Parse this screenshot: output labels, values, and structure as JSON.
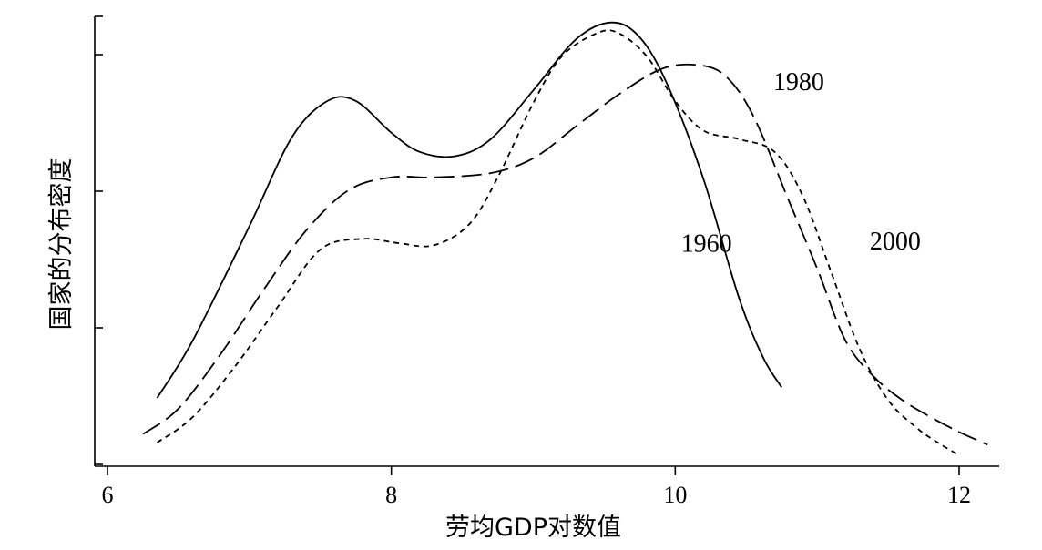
{
  "chart_data": {
    "type": "line",
    "title": "",
    "xlabel": "劳均GDP对数值",
    "ylabel": "国家的分布密度",
    "xlim": [
      5.95,
      12.25
    ],
    "ylim": [
      0,
      1
    ],
    "x_ticks": [
      6,
      8,
      10,
      12
    ],
    "x_tick_labels": [
      "6",
      "8",
      "10",
      "12"
    ],
    "y_tick_count": 5,
    "grid": false,
    "series": [
      {
        "name": "1960",
        "style": "solid",
        "x": [
          6.35,
          6.6,
          7.0,
          7.3,
          7.55,
          7.75,
          8.0,
          8.2,
          8.45,
          8.7,
          9.0,
          9.3,
          9.55,
          9.75,
          9.95,
          10.2,
          10.45,
          10.62,
          10.75
        ],
        "y": [
          0.135,
          0.27,
          0.54,
          0.75,
          0.835,
          0.835,
          0.76,
          0.715,
          0.705,
          0.745,
          0.86,
          0.98,
          1.02,
          0.985,
          0.87,
          0.65,
          0.37,
          0.23,
          0.16
        ]
      },
      {
        "name": "1980",
        "style": "dashed",
        "x": [
          6.25,
          6.5,
          6.8,
          7.1,
          7.4,
          7.7,
          8.0,
          8.3,
          8.7,
          9.0,
          9.3,
          9.6,
          9.9,
          10.15,
          10.35,
          10.55,
          10.8,
          11.0,
          11.2,
          11.4,
          11.6,
          11.8,
          12.0,
          12.2
        ],
        "y": [
          0.05,
          0.11,
          0.24,
          0.39,
          0.53,
          0.625,
          0.655,
          0.655,
          0.665,
          0.7,
          0.775,
          0.85,
          0.91,
          0.92,
          0.895,
          0.8,
          0.6,
          0.44,
          0.27,
          0.185,
          0.13,
          0.09,
          0.055,
          0.025
        ]
      },
      {
        "name": "2000",
        "style": "dotted",
        "x": [
          6.35,
          6.6,
          6.9,
          7.2,
          7.5,
          7.8,
          8.05,
          8.3,
          8.55,
          8.75,
          9.0,
          9.2,
          9.45,
          9.6,
          9.8,
          10.0,
          10.2,
          10.45,
          10.7,
          10.9,
          11.1,
          11.3,
          11.5,
          11.7,
          11.85,
          12.0
        ],
        "y": [
          0.03,
          0.09,
          0.21,
          0.35,
          0.485,
          0.51,
          0.5,
          0.495,
          0.545,
          0.655,
          0.83,
          0.94,
          0.995,
          0.995,
          0.94,
          0.835,
          0.765,
          0.745,
          0.715,
          0.61,
          0.43,
          0.25,
          0.13,
          0.065,
          0.03,
          0.0
        ]
      }
    ],
    "annotations": [
      {
        "text": "1960",
        "series": "1960",
        "x": 10.22,
        "y": 0.48
      },
      {
        "text": "1980",
        "series": "1980",
        "x": 10.87,
        "y": 0.86
      },
      {
        "text": "2000",
        "series": "2000",
        "x": 11.55,
        "y": 0.485
      }
    ]
  }
}
